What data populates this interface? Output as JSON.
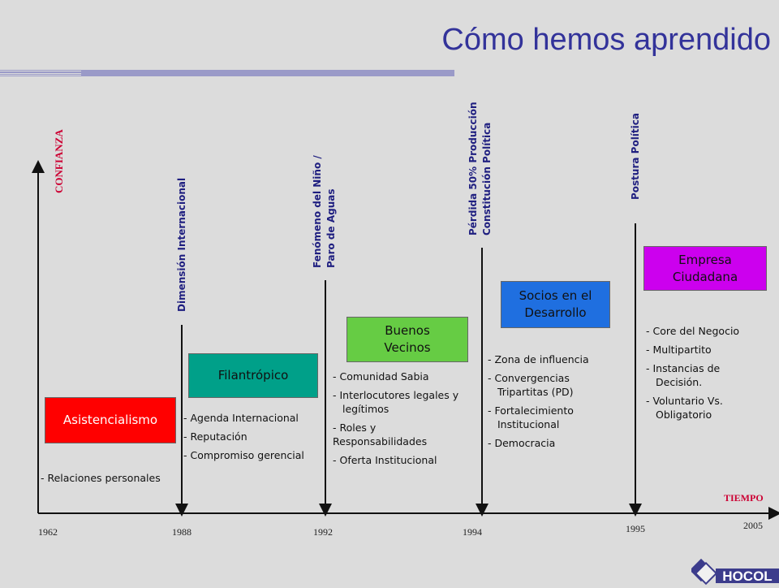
{
  "title": "Cómo hemos aprendido",
  "y_axis_label": "CONFIANZA",
  "x_axis_label": "TIEMPO",
  "years": [
    "1962",
    "1988",
    "1992",
    "1994",
    "1995",
    "2005"
  ],
  "events": [
    {
      "lines": [
        "Dimensión Internacional"
      ]
    },
    {
      "lines": [
        "Fenómeno del Niño /",
        "Paro de Aguas"
      ]
    },
    {
      "lines": [
        "Pérdida 50% Producción",
        "Constitución Política"
      ]
    },
    {
      "lines": [
        "Postura Política"
      ]
    }
  ],
  "stages": [
    {
      "label": "Asistencialismo",
      "color": "#ff0000"
    },
    {
      "label": "Filantrópico",
      "color": "#00a089"
    },
    {
      "label": "Buenos Vecinos",
      "color": "#66cc44"
    },
    {
      "label": "Socios en el Desarrollo",
      "color": "#1f6fe0"
    },
    {
      "label": "Empresa Ciudadana",
      "color": "#cc00ee"
    }
  ],
  "bullets": [
    [
      "- Relaciones personales"
    ],
    [
      "- Agenda Internacional",
      "- Reputación",
      "- Compromiso gerencial"
    ],
    [
      "- Comunidad Sabia",
      "- Interlocutores legales y legítimos",
      "-  Roles y Responsabilidades",
      "- Oferta Institucional"
    ],
    [
      "- Zona de influencia",
      "- Convergencias Tripartitas (PD)",
      "- Fortalecimiento Institucional",
      "- Democracia"
    ],
    [
      "- Core del Negocio",
      "- Multipartito",
      "- Instancias de Decisión.",
      "- Voluntario Vs. Obligatorio"
    ]
  ],
  "logo_text": "HOCOL",
  "colors": {
    "title": "#33339a",
    "event_text": "#1f1f80",
    "axis_label": "#cc0033"
  }
}
